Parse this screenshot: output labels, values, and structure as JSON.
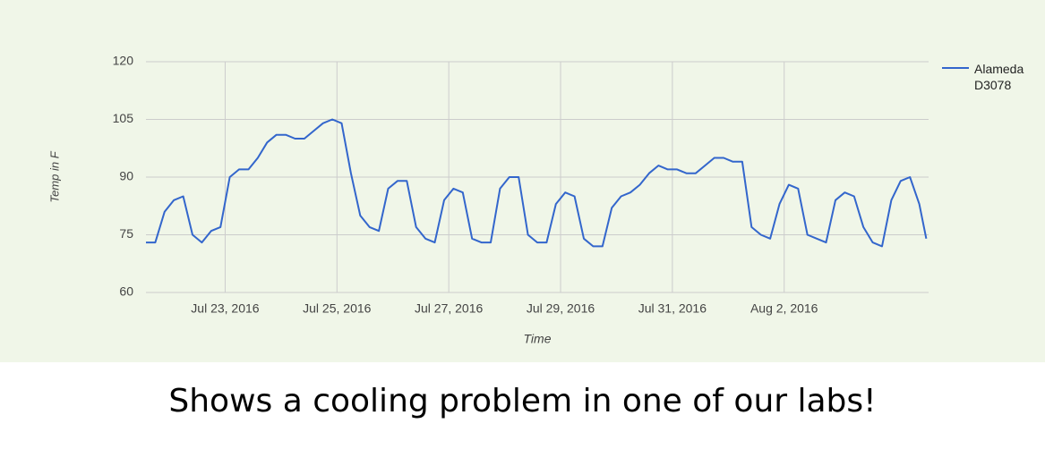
{
  "chart_data": {
    "type": "line",
    "x_label": "Time",
    "y_label": "Temp in F",
    "x": [
      "2016-07-21T14:00",
      "2016-07-21T18:00",
      "2016-07-21T22:00",
      "2016-07-22T02:00",
      "2016-07-22T06:00",
      "2016-07-22T10:00",
      "2016-07-22T14:00",
      "2016-07-22T18:00",
      "2016-07-22T22:00",
      "2016-07-23T02:00",
      "2016-07-23T06:00",
      "2016-07-23T10:00",
      "2016-07-23T14:00",
      "2016-07-23T18:00",
      "2016-07-23T22:00",
      "2016-07-24T02:00",
      "2016-07-24T06:00",
      "2016-07-24T10:00",
      "2016-07-24T14:00",
      "2016-07-24T18:00",
      "2016-07-24T22:00",
      "2016-07-25T02:00",
      "2016-07-25T06:00",
      "2016-07-25T10:00",
      "2016-07-25T14:00",
      "2016-07-25T18:00",
      "2016-07-25T22:00",
      "2016-07-26T02:00",
      "2016-07-26T06:00",
      "2016-07-26T10:00",
      "2016-07-26T14:00",
      "2016-07-26T18:00",
      "2016-07-26T22:00",
      "2016-07-27T02:00",
      "2016-07-27T06:00",
      "2016-07-27T10:00",
      "2016-07-27T14:00",
      "2016-07-27T18:00",
      "2016-07-27T22:00",
      "2016-07-28T02:00",
      "2016-07-28T06:00",
      "2016-07-28T10:00",
      "2016-07-28T14:00",
      "2016-07-28T18:00",
      "2016-07-28T22:00",
      "2016-07-29T02:00",
      "2016-07-29T06:00",
      "2016-07-29T10:00",
      "2016-07-29T14:00",
      "2016-07-29T18:00",
      "2016-07-29T22:00",
      "2016-07-30T02:00",
      "2016-07-30T06:00",
      "2016-07-30T10:00",
      "2016-07-30T14:00",
      "2016-07-30T18:00",
      "2016-07-30T22:00",
      "2016-07-31T02:00",
      "2016-07-31T06:00",
      "2016-07-31T10:00",
      "2016-07-31T14:00",
      "2016-07-31T18:00",
      "2016-07-31T22:00",
      "2016-08-01T02:00",
      "2016-08-01T06:00",
      "2016-08-01T10:00",
      "2016-08-01T14:00",
      "2016-08-01T18:00",
      "2016-08-01T22:00",
      "2016-08-02T02:00",
      "2016-08-02T06:00",
      "2016-08-02T10:00",
      "2016-08-02T14:00",
      "2016-08-02T18:00",
      "2016-08-02T22:00",
      "2016-08-03T02:00",
      "2016-08-03T06:00",
      "2016-08-03T10:00",
      "2016-08-03T14:00",
      "2016-08-03T18:00",
      "2016-08-03T22:00",
      "2016-08-04T02:00",
      "2016-08-04T06:00",
      "2016-08-04T10:00",
      "2016-08-04T13:00"
    ],
    "series": [
      {
        "name": "Alameda D3078",
        "color": "#3366cc",
        "values": [
          73,
          73,
          81,
          84,
          85,
          75,
          73,
          76,
          77,
          90,
          92,
          92,
          95,
          99,
          101,
          101,
          100,
          100,
          102,
          104,
          105,
          104,
          91,
          80,
          77,
          76,
          87,
          89,
          89,
          77,
          74,
          73,
          84,
          87,
          86,
          74,
          73,
          73,
          87,
          90,
          90,
          75,
          73,
          73,
          83,
          86,
          85,
          74,
          72,
          72,
          82,
          85,
          86,
          88,
          91,
          93,
          92,
          92,
          91,
          91,
          93,
          95,
          95,
          94,
          94,
          77,
          75,
          74,
          83,
          88,
          87,
          75,
          74,
          73,
          84,
          86,
          85,
          77,
          73,
          72,
          84,
          89,
          90,
          83,
          74
        ]
      }
    ],
    "xlim": [
      "2016-07-21T14:00",
      "2016-08-04T14:00"
    ],
    "xticks": [
      {
        "value": "2016-07-23T00:00",
        "label": "Jul 23, 2016"
      },
      {
        "value": "2016-07-25T00:00",
        "label": "Jul 25, 2016"
      },
      {
        "value": "2016-07-27T00:00",
        "label": "Jul 27, 2016"
      },
      {
        "value": "2016-07-29T00:00",
        "label": "Jul 29, 2016"
      },
      {
        "value": "2016-07-31T00:00",
        "label": "Jul 31, 2016"
      },
      {
        "value": "2016-08-02T00:00",
        "label": "Aug 2, 2016"
      }
    ],
    "ylim": [
      60,
      120
    ],
    "yticks": [
      60,
      75,
      90,
      105,
      120
    ],
    "grid": true,
    "legend": "right"
  },
  "caption": "Shows a cooling problem in one of our labs!"
}
